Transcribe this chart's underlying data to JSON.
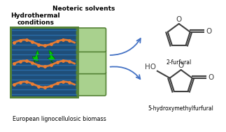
{
  "title_hydrothermal": "Hydrothermal\nconditions",
  "title_neoteric": "Neoteric solvents",
  "label_biomass": "European lignocellulosic biomass",
  "label_hmf": "5-hydroxymethylfurfural",
  "label_furfural": "2-furfural",
  "bg_color": "#ffffff",
  "text_color_black": "#000000",
  "arrow_color": "#4472c4",
  "lightning_color": "#00cc00",
  "biomass_dark_blue": "#1f4e79",
  "biomass_mid_blue": "#2e75b6",
  "biomass_green_light": "#a9d18e",
  "biomass_green_dark": "#548235",
  "biomass_orange": "#ed7d31",
  "biomass_yellow_green": "#d6e4aa",
  "furan_ring_color": "#404040",
  "figsize": [
    3.23,
    1.89
  ],
  "dpi": 100
}
